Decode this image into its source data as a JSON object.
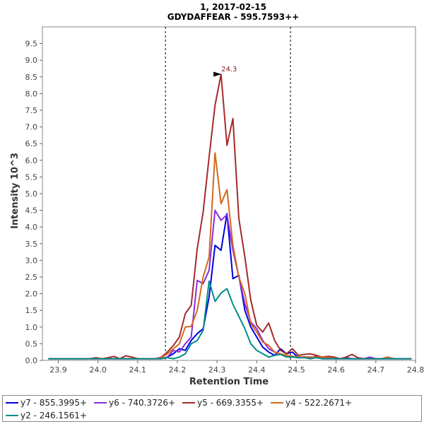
{
  "chart_data": {
    "type": "line",
    "title_line1": "1, 2017-02-15",
    "title_line2": "GDYDAFFEAR - 595.7593++",
    "xlabel": "Retention Time",
    "ylabel": "Intensity 10^3",
    "xlim": [
      23.86,
      24.8
    ],
    "ylim": [
      0,
      10
    ],
    "xticks": [
      "23.9",
      "24.0",
      "24.1",
      "24.2",
      "24.3",
      "24.4",
      "24.5",
      "24.6",
      "24.7",
      "24.8"
    ],
    "xtick_values": [
      23.9,
      24.0,
      24.1,
      24.2,
      24.3,
      24.4,
      24.5,
      24.6,
      24.7,
      24.8
    ],
    "yticks": [
      "0.0",
      "0.5",
      "1.0",
      "1.5",
      "2.0",
      "2.5",
      "3.0",
      "3.5",
      "4.0",
      "4.5",
      "5.0",
      "5.5",
      "6.0",
      "6.5",
      "7.0",
      "7.5",
      "8.0",
      "8.5",
      "9.0",
      "9.5"
    ],
    "ytick_values": [
      0,
      0.5,
      1.0,
      1.5,
      2.0,
      2.5,
      3.0,
      3.5,
      4.0,
      4.5,
      5.0,
      5.5,
      6.0,
      6.5,
      7.0,
      7.5,
      8.0,
      8.5,
      9.0,
      9.5
    ],
    "boundaries": [
      24.17,
      24.485
    ],
    "peak_annotation": {
      "label": "24.3",
      "x": 24.316,
      "y": 8.58,
      "color": "#8b1a1a"
    },
    "x": [
      23.875,
      23.89,
      23.905,
      23.92,
      23.935,
      23.95,
      23.965,
      23.98,
      23.995,
      24.01,
      24.025,
      24.04,
      24.055,
      24.07,
      24.085,
      24.1,
      24.115,
      24.13,
      24.145,
      24.16,
      24.175,
      24.19,
      24.205,
      24.22,
      24.235,
      24.25,
      24.265,
      24.28,
      24.295,
      24.31,
      24.325,
      24.34,
      24.355,
      24.37,
      24.385,
      24.4,
      24.415,
      24.43,
      24.445,
      24.46,
      24.475,
      24.49,
      24.505,
      24.52,
      24.535,
      24.55,
      24.565,
      24.58,
      24.595,
      24.61,
      24.625,
      24.64,
      24.655,
      24.67,
      24.685,
      24.7,
      24.715,
      24.73,
      24.745,
      24.76,
      24.775,
      24.79
    ],
    "series": [
      {
        "name": "y7 - 855.3995+",
        "color": "#0000dd",
        "values": [
          0.05,
          0.05,
          0.05,
          0.05,
          0.05,
          0.05,
          0.05,
          0.05,
          0.05,
          0.05,
          0.05,
          0.05,
          0.05,
          0.05,
          0.05,
          0.05,
          0.05,
          0.05,
          0.05,
          0.05,
          0.1,
          0.2,
          0.35,
          0.3,
          0.6,
          0.8,
          0.95,
          1.9,
          3.45,
          3.3,
          4.4,
          2.45,
          2.55,
          1.5,
          1.0,
          0.7,
          0.4,
          0.25,
          0.15,
          0.35,
          0.2,
          0.25,
          0.08,
          0.1,
          0.08,
          0.12,
          0.05,
          0.05,
          0.05,
          0.05,
          0.08,
          0.05,
          0.05,
          0.05,
          0.05,
          0.05,
          0.05,
          0.05,
          0.05,
          0.05,
          0.05,
          0.05
        ]
      },
      {
        "name": "y6 - 740.3726+",
        "color": "#8a2be2",
        "values": [
          0.05,
          0.05,
          0.05,
          0.05,
          0.05,
          0.05,
          0.05,
          0.05,
          0.05,
          0.05,
          0.05,
          0.05,
          0.05,
          0.05,
          0.05,
          0.05,
          0.05,
          0.05,
          0.05,
          0.05,
          0.1,
          0.3,
          0.25,
          0.5,
          0.7,
          2.4,
          2.3,
          2.7,
          4.5,
          4.2,
          4.37,
          3.3,
          2.5,
          1.7,
          1.15,
          0.95,
          0.6,
          0.35,
          0.25,
          0.18,
          0.15,
          0.12,
          0.1,
          0.1,
          0.1,
          0.08,
          0.1,
          0.08,
          0.05,
          0.05,
          0.05,
          0.05,
          0.05,
          0.05,
          0.1,
          0.05,
          0.05,
          0.05,
          0.05,
          0.05,
          0.05,
          0.05
        ]
      },
      {
        "name": "y5 - 669.3355+",
        "color": "#a52a2a",
        "values": [
          0.05,
          0.05,
          0.05,
          0.05,
          0.05,
          0.05,
          0.05,
          0.05,
          0.08,
          0.05,
          0.08,
          0.12,
          0.05,
          0.14,
          0.1,
          0.05,
          0.05,
          0.05,
          0.05,
          0.1,
          0.25,
          0.45,
          0.7,
          1.4,
          1.65,
          3.35,
          4.45,
          6.1,
          7.65,
          8.58,
          6.45,
          7.25,
          4.25,
          3.1,
          1.8,
          1.05,
          0.85,
          1.12,
          0.6,
          0.3,
          0.2,
          0.35,
          0.15,
          0.18,
          0.2,
          0.15,
          0.1,
          0.12,
          0.1,
          0.05,
          0.1,
          0.18,
          0.08,
          0.05,
          0.05,
          0.05,
          0.05,
          0.1,
          0.05,
          0.05,
          0.05,
          0.05
        ]
      },
      {
        "name": "y4 - 522.2671+",
        "color": "#d2691e",
        "values": [
          0.05,
          0.05,
          0.05,
          0.05,
          0.05,
          0.05,
          0.05,
          0.05,
          0.05,
          0.05,
          0.05,
          0.05,
          0.05,
          0.05,
          0.05,
          0.05,
          0.05,
          0.05,
          0.05,
          0.08,
          0.2,
          0.35,
          0.5,
          1.0,
          1.02,
          1.5,
          2.5,
          3.1,
          6.22,
          4.7,
          5.12,
          3.45,
          2.5,
          2.0,
          1.1,
          0.85,
          0.55,
          0.45,
          0.25,
          0.2,
          0.15,
          0.12,
          0.1,
          0.1,
          0.1,
          0.1,
          0.1,
          0.08,
          0.05,
          0.05,
          0.05,
          0.05,
          0.05,
          0.05,
          0.05,
          0.05,
          0.05,
          0.1,
          0.05,
          0.05,
          0.05,
          0.05
        ]
      },
      {
        "name": "y2 - 246.1561+",
        "color": "#008b8b",
        "values": [
          0.05,
          0.05,
          0.05,
          0.05,
          0.05,
          0.05,
          0.05,
          0.05,
          0.05,
          0.05,
          0.05,
          0.05,
          0.05,
          0.05,
          0.05,
          0.05,
          0.05,
          0.05,
          0.05,
          0.05,
          0.08,
          0.05,
          0.1,
          0.2,
          0.5,
          0.6,
          0.9,
          2.38,
          1.77,
          2.02,
          2.15,
          1.68,
          1.32,
          0.95,
          0.5,
          0.3,
          0.2,
          0.1,
          0.15,
          0.18,
          0.1,
          0.1,
          0.08,
          0.08,
          0.05,
          0.08,
          0.05,
          0.05,
          0.05,
          0.05,
          0.05,
          0.05,
          0.05,
          0.05,
          0.05,
          0.05,
          0.05,
          0.05,
          0.05,
          0.05,
          0.05,
          0.05
        ]
      }
    ]
  },
  "legend": {
    "row1": [
      "y7 - 855.3995+",
      "y6 - 740.3726+",
      "y5 - 669.3355+",
      "y4 - 522.2671+"
    ],
    "row2": [
      "y2 - 246.1561+"
    ]
  }
}
